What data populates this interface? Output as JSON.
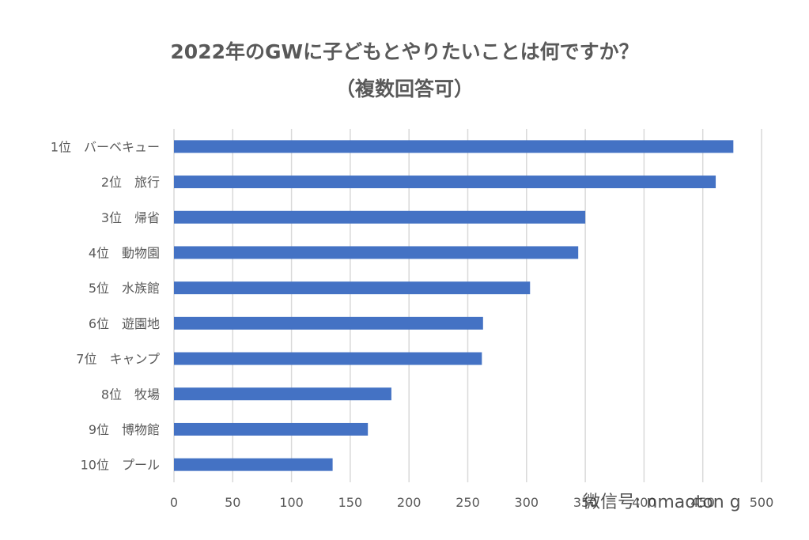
{
  "chart_data": {
    "type": "bar",
    "orientation": "horizontal",
    "title": "2022年のGWに子どもとやりたいことは何ですか？",
    "subtitle": "（複数回答可）",
    "categories": [
      "1位　バーベキュー",
      "2位　旅行",
      "3位　帰省",
      "4位　動物園",
      "5位　水族館",
      "6位　遊園地",
      "7位　キャンプ",
      "8位　牧場",
      "9位　博物館",
      "10位　プール"
    ],
    "values": [
      476,
      461,
      350,
      344,
      303,
      263,
      262,
      185,
      165,
      135
    ],
    "xlim": [
      0,
      500
    ],
    "xticks": [
      "0",
      "50",
      "100",
      "150",
      "200",
      "250",
      "300",
      "350",
      "400",
      "450",
      "500"
    ],
    "grid": true,
    "bar_color": "#4472C4"
  },
  "watermark": "微信号: nmaoton g"
}
